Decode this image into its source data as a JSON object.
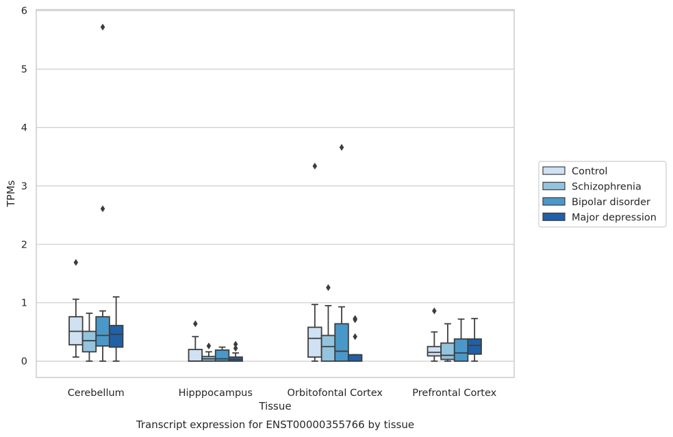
{
  "chart_data": {
    "type": "box",
    "title": "",
    "xlabel": "Tissue",
    "ylabel": "TPMs",
    "caption": "Transcript expression for ENST00000355766 by tissue",
    "ylim": [
      -0.28,
      6.02
    ],
    "yticks": [
      0,
      1,
      2,
      3,
      4,
      5,
      6
    ],
    "grid": "horizontal",
    "legend_position": "right",
    "categories": [
      "Cerebellum",
      "Hipppocampus",
      "Orbitofontal Cortex",
      "Prefrontal Cortex"
    ],
    "series": [
      {
        "name": "Control",
        "color": "#cfe1f2",
        "boxes": [
          {
            "whislo": 0.07,
            "q1": 0.28,
            "med": 0.51,
            "q3": 0.76,
            "whishi": 1.06,
            "fliers": [
              1.69
            ]
          },
          {
            "whislo": 0.0,
            "q1": 0.0,
            "med": 0.0,
            "q3": 0.2,
            "whishi": 0.42,
            "fliers": [
              0.64
            ]
          },
          {
            "whislo": 0.0,
            "q1": 0.07,
            "med": 0.39,
            "q3": 0.58,
            "whishi": 0.97,
            "fliers": [
              3.34
            ]
          },
          {
            "whislo": 0.0,
            "q1": 0.09,
            "med": 0.15,
            "q3": 0.25,
            "whishi": 0.5,
            "fliers": [
              0.86
            ]
          }
        ]
      },
      {
        "name": "Schizophrenia",
        "color": "#93c4de",
        "boxes": [
          {
            "whislo": 0.0,
            "q1": 0.16,
            "med": 0.35,
            "q3": 0.51,
            "whishi": 0.82,
            "fliers": []
          },
          {
            "whislo": 0.0,
            "q1": 0.0,
            "med": 0.04,
            "q3": 0.08,
            "whishi": 0.16,
            "fliers": [
              0.26
            ]
          },
          {
            "whislo": 0.0,
            "q1": 0.0,
            "med": 0.25,
            "q3": 0.44,
            "whishi": 0.95,
            "fliers": [
              1.26
            ]
          },
          {
            "whislo": 0.0,
            "q1": 0.03,
            "med": 0.1,
            "q3": 0.31,
            "whishi": 0.64,
            "fliers": []
          }
        ]
      },
      {
        "name": "Bipolar disorder",
        "color": "#4a98c9",
        "boxes": [
          {
            "whislo": 0.0,
            "q1": 0.26,
            "med": 0.44,
            "q3": 0.76,
            "whishi": 0.86,
            "fliers": [
              2.61,
              5.72
            ]
          },
          {
            "whislo": 0.0,
            "q1": 0.0,
            "med": 0.04,
            "q3": 0.19,
            "whishi": 0.24,
            "fliers": []
          },
          {
            "whislo": 0.0,
            "q1": 0.0,
            "med": 0.17,
            "q3": 0.64,
            "whishi": 0.93,
            "fliers": [
              3.66
            ]
          },
          {
            "whislo": 0.0,
            "q1": 0.0,
            "med": 0.14,
            "q3": 0.38,
            "whishi": 0.72,
            "fliers": []
          }
        ]
      },
      {
        "name": "Major depression",
        "color": "#2060a7",
        "boxes": [
          {
            "whislo": 0.0,
            "q1": 0.24,
            "med": 0.46,
            "q3": 0.61,
            "whishi": 1.1,
            "fliers": []
          },
          {
            "whislo": 0.0,
            "q1": 0.0,
            "med": 0.03,
            "q3": 0.07,
            "whishi": 0.14,
            "fliers": [
              0.22,
              0.29
            ]
          },
          {
            "whislo": 0.0,
            "q1": 0.0,
            "med": 0.0,
            "q3": 0.11,
            "whishi": 0.11,
            "fliers": [
              0.42,
              0.71,
              0.73
            ]
          },
          {
            "whislo": 0.0,
            "q1": 0.12,
            "med": 0.27,
            "q3": 0.38,
            "whishi": 0.73,
            "fliers": []
          }
        ]
      }
    ]
  }
}
